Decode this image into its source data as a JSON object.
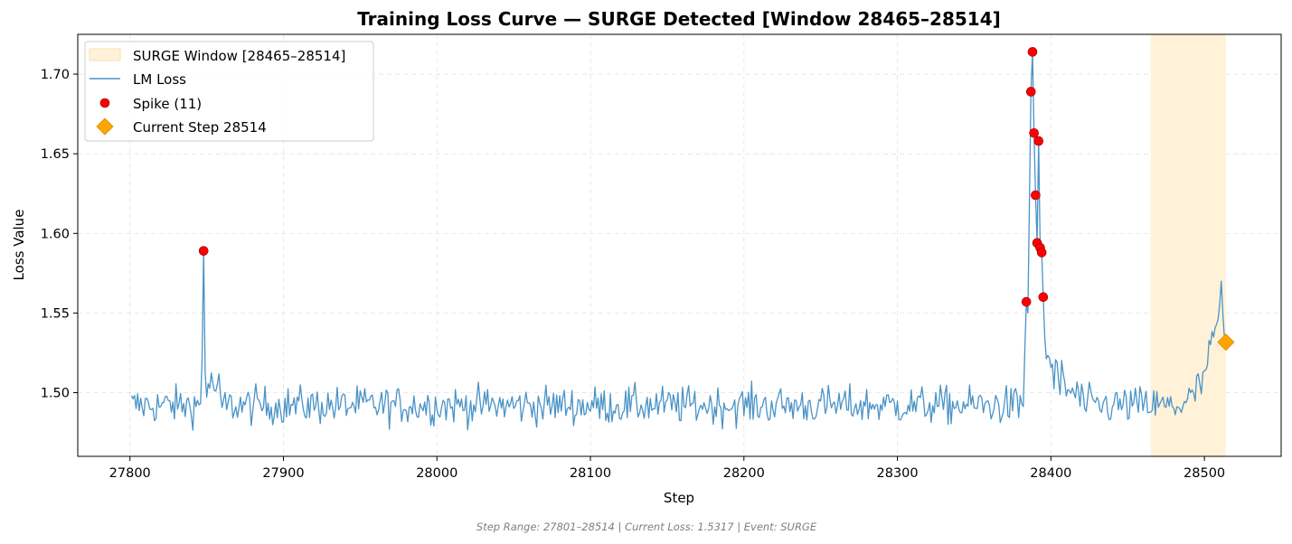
{
  "chart_data": {
    "type": "line",
    "title": "Training Loss Curve — SURGE Detected [Window 28465–28514]",
    "xlabel": "Step",
    "ylabel": "Loss Value",
    "xlim": [
      27766,
      28550
    ],
    "ylim": [
      1.46,
      1.725
    ],
    "xticks": [
      27800,
      27900,
      28000,
      28100,
      28200,
      28300,
      28400,
      28500
    ],
    "yticks": [
      1.5,
      1.55,
      1.6,
      1.65,
      1.7
    ],
    "ytick_labels": [
      "1.50",
      "1.55",
      "1.60",
      "1.65",
      "1.70"
    ],
    "grid": true,
    "legend_position": "top-left",
    "surge_window": {
      "label": "SURGE Window [28465–28514]",
      "start": 28465,
      "end": 28514,
      "color": "#fff2d9"
    },
    "series": [
      {
        "name": "LM Loss",
        "color": "#4a93c6",
        "x_start": 27801,
        "x_end": 28514,
        "baseline": 1.492,
        "noise": 0.006,
        "anchors": [
          [
            27846,
            1.492
          ],
          [
            27847,
            1.52
          ],
          [
            27848,
            1.589
          ],
          [
            27849,
            1.515
          ],
          [
            27850,
            1.503
          ],
          [
            27852,
            1.505
          ],
          [
            27858,
            1.502
          ],
          [
            28382,
            1.49
          ],
          [
            28383,
            1.525
          ],
          [
            28384,
            1.557
          ],
          [
            28385,
            1.55
          ],
          [
            28386,
            1.62
          ],
          [
            28387,
            1.689
          ],
          [
            28388,
            1.714
          ],
          [
            28389,
            1.663
          ],
          [
            28390,
            1.624
          ],
          [
            28391,
            1.594
          ],
          [
            28392,
            1.658
          ],
          [
            28393,
            1.591
          ],
          [
            28394,
            1.588
          ],
          [
            28395,
            1.56
          ],
          [
            28396,
            1.535
          ],
          [
            28398,
            1.522
          ],
          [
            28402,
            1.512
          ],
          [
            28410,
            1.502
          ],
          [
            28420,
            1.497
          ],
          [
            28465,
            1.492
          ],
          [
            28480,
            1.491
          ],
          [
            28490,
            1.495
          ],
          [
            28498,
            1.505
          ],
          [
            28503,
            1.522
          ],
          [
            28506,
            1.535
          ],
          [
            28508,
            1.543
          ],
          [
            28510,
            1.556
          ],
          [
            28511,
            1.57
          ],
          [
            28512,
            1.55
          ],
          [
            28513,
            1.535
          ],
          [
            28514,
            1.5317
          ]
        ]
      }
    ],
    "spikes": {
      "name": "Spike (11)",
      "color": "#ff0000",
      "points": [
        [
          27848,
          1.589
        ],
        [
          28384,
          1.557
        ],
        [
          28387,
          1.689
        ],
        [
          28388,
          1.714
        ],
        [
          28389,
          1.663
        ],
        [
          28390,
          1.624
        ],
        [
          28391,
          1.594
        ],
        [
          28392,
          1.658
        ],
        [
          28393,
          1.591
        ],
        [
          28394,
          1.588
        ],
        [
          28395,
          1.56
        ]
      ]
    },
    "current_step": {
      "name": "Current Step 28514",
      "x": 28514,
      "y": 1.5317,
      "color": "#ffa500"
    },
    "footer": "Step Range: 27801–28514 | Current Loss: 1.5317 | Event: SURGE"
  }
}
